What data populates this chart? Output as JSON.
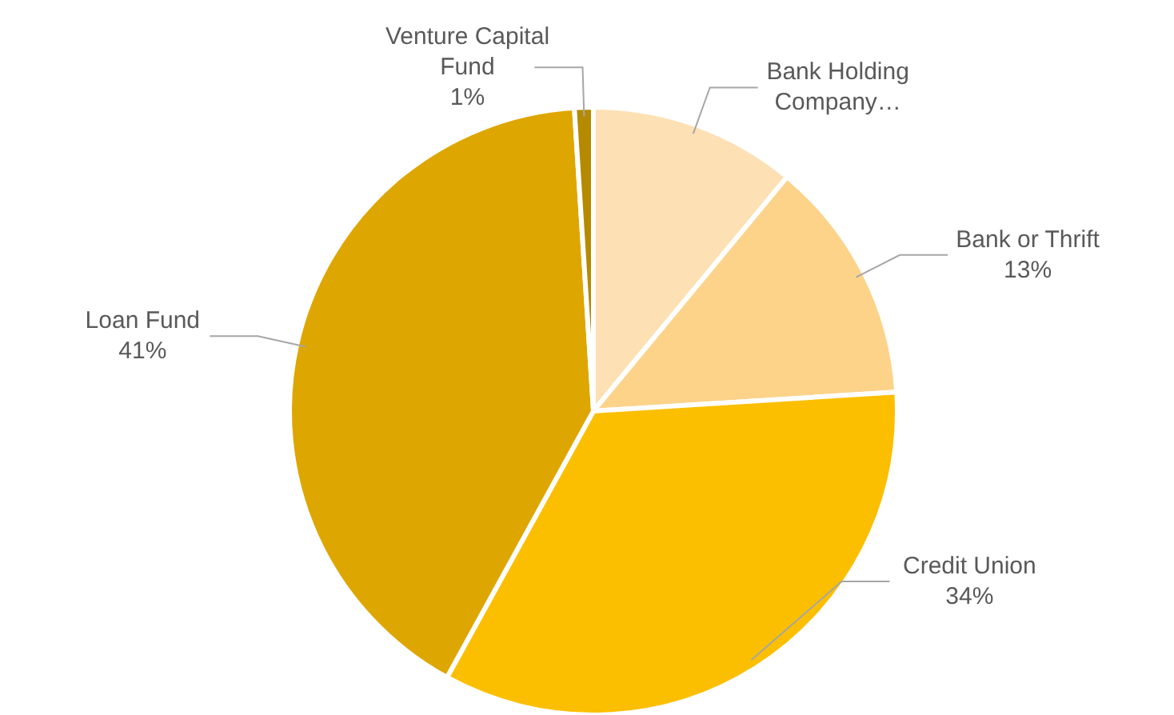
{
  "chart_data": {
    "type": "pie",
    "categories": [
      "Bank Holding Company…",
      "Bank or Thrift",
      "Credit Union",
      "Loan Fund",
      "Venture Capital Fund"
    ],
    "values": [
      11,
      13,
      34,
      41,
      1
    ],
    "colors": [
      "#fde0b3",
      "#fdd38a",
      "#fbbf00",
      "#dea600",
      "#b58a00"
    ],
    "value_labels": [
      null,
      "13%",
      "34%",
      "41%",
      "1%"
    ],
    "legend": false
  }
}
